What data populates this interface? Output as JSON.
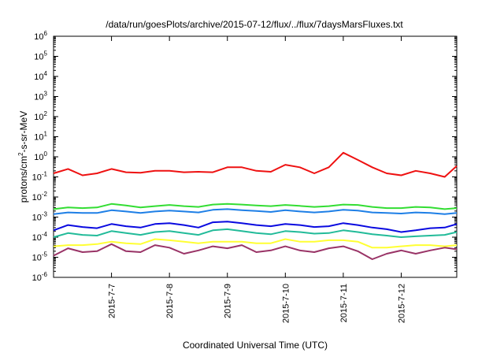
{
  "chart_data": {
    "type": "line",
    "title": "/data/run/goesPlots/archive/2015-07-12/flux/../flux/7daysMarsFluxes.txt",
    "xlabel": "Coordinated Universal Time (UTC)",
    "ylabel": "protons/cm2-s-sr-MeV",
    "ylabel_parts": {
      "base": "protons/cm",
      "sup": "2",
      "rest": "-s-sr-MeV"
    },
    "yscale": "log",
    "ylim_exponents": [
      -6,
      6
    ],
    "y_tick_labels": [
      {
        "base": "10",
        "exp": "-6"
      },
      {
        "base": "10",
        "exp": "-5"
      },
      {
        "base": "10",
        "exp": "-4"
      },
      {
        "base": "10",
        "exp": "-3"
      },
      {
        "base": "10",
        "exp": "-2"
      },
      {
        "base": "10",
        "exp": "-1"
      },
      {
        "base": "10",
        "exp": "0"
      },
      {
        "base": "10",
        "exp": "1"
      },
      {
        "base": "10",
        "exp": "2"
      },
      {
        "base": "10",
        "exp": "3"
      },
      {
        "base": "10",
        "exp": "4"
      },
      {
        "base": "10",
        "exp": "5"
      },
      {
        "base": "10",
        "exp": "6"
      }
    ],
    "x_tick_labels": [
      "2015-7-7",
      "2015-7-8",
      "2015-7-9",
      "2015-7-10",
      "2015-7-11",
      "2015-7-12"
    ],
    "xlim": [
      "2015-07-06",
      "2015-07-12 23:00"
    ],
    "x_tick_dates": [
      "2015-07-07",
      "2015-07-08",
      "2015-07-09",
      "2015-07-10",
      "2015-07-11",
      "2015-07-12"
    ],
    "x": [
      "2015-07-06",
      "2015-07-06 06:00",
      "2015-07-06 12:00",
      "2015-07-06 18:00",
      "2015-07-07",
      "2015-07-07 06:00",
      "2015-07-07 12:00",
      "2015-07-07 18:00",
      "2015-07-08",
      "2015-07-08 06:00",
      "2015-07-08 12:00",
      "2015-07-08 18:00",
      "2015-07-09",
      "2015-07-09 06:00",
      "2015-07-09 12:00",
      "2015-07-09 18:00",
      "2015-07-10",
      "2015-07-10 06:00",
      "2015-07-10 12:00",
      "2015-07-10 18:00",
      "2015-07-11",
      "2015-07-11 06:00",
      "2015-07-11 12:00",
      "2015-07-11 18:00",
      "2015-07-12",
      "2015-07-12 06:00",
      "2015-07-12 12:00",
      "2015-07-12 18:00",
      "2015-07-12 23:00"
    ],
    "grid": false,
    "legend": "none",
    "series": [
      {
        "color": "#ee1111",
        "values": [
          0.15,
          0.25,
          0.12,
          0.15,
          0.25,
          0.17,
          0.16,
          0.2,
          0.2,
          0.17,
          0.18,
          0.17,
          0.3,
          0.3,
          0.2,
          0.18,
          0.4,
          0.3,
          0.15,
          0.3,
          1.6,
          0.7,
          0.3,
          0.15,
          0.12,
          0.2,
          0.15,
          0.1,
          0.35
        ]
      },
      {
        "color": "#33dd33",
        "values": [
          0.0025,
          0.003,
          0.0028,
          0.003,
          0.0045,
          0.0038,
          0.003,
          0.0035,
          0.004,
          0.0035,
          0.0032,
          0.0042,
          0.0045,
          0.0042,
          0.0038,
          0.0035,
          0.004,
          0.0036,
          0.0032,
          0.0035,
          0.0042,
          0.004,
          0.0032,
          0.0028,
          0.0028,
          0.0032,
          0.003,
          0.0025,
          0.0028
        ]
      },
      {
        "color": "#1e7fe6",
        "values": [
          0.0014,
          0.0017,
          0.0016,
          0.0016,
          0.0022,
          0.0019,
          0.0016,
          0.0019,
          0.0021,
          0.0019,
          0.0017,
          0.0023,
          0.0025,
          0.0022,
          0.002,
          0.0018,
          0.0022,
          0.0019,
          0.0017,
          0.0019,
          0.0023,
          0.0021,
          0.0017,
          0.0016,
          0.0015,
          0.0017,
          0.0016,
          0.0014,
          0.0016
        ]
      },
      {
        "color": "#0a0ae0",
        "values": [
          0.00022,
          0.0004,
          0.00032,
          0.00028,
          0.00045,
          0.00035,
          0.0003,
          0.00045,
          0.0005,
          0.0004,
          0.0003,
          0.00055,
          0.0006,
          0.0005,
          0.0004,
          0.00035,
          0.00045,
          0.0004,
          0.00032,
          0.00035,
          0.0005,
          0.0004,
          0.0003,
          0.00025,
          0.00018,
          0.00022,
          0.00028,
          0.0003,
          0.00045
        ]
      },
      {
        "color": "#22bb99",
        "values": [
          0.0001,
          0.00016,
          0.00013,
          0.00012,
          0.0002,
          0.00016,
          0.00013,
          0.00018,
          0.0002,
          0.00016,
          0.00013,
          0.00022,
          0.00025,
          0.0002,
          0.00016,
          0.00014,
          0.0002,
          0.00018,
          0.00015,
          0.00016,
          0.00022,
          0.00018,
          0.00014,
          0.00012,
          0.0001,
          0.00011,
          0.00012,
          0.00013,
          0.00018
        ]
      },
      {
        "color": "#ffff33",
        "values": [
          3.5e-05,
          4e-05,
          4e-05,
          4.5e-05,
          6e-05,
          5e-05,
          4.5e-05,
          8e-05,
          7e-05,
          6e-05,
          5e-05,
          6e-05,
          6e-05,
          6e-05,
          5e-05,
          5e-05,
          8e-05,
          6e-05,
          6e-05,
          7e-05,
          7e-05,
          6e-05,
          3e-05,
          3e-05,
          3.5e-05,
          4e-05,
          4e-05,
          3.5e-05,
          4e-05
        ]
      },
      {
        "color": "#993366",
        "values": [
          1.2e-05,
          2.8e-05,
          1.8e-05,
          2e-05,
          4.5e-05,
          2e-05,
          1.8e-05,
          4e-05,
          3e-05,
          1.5e-05,
          2.2e-05,
          3.5e-05,
          2.8e-05,
          4e-05,
          1.8e-05,
          2.2e-05,
          3.5e-05,
          2.2e-05,
          1.8e-05,
          2.8e-05,
          3.5e-05,
          2e-05,
          8e-06,
          1.5e-05,
          2.2e-05,
          1.5e-05,
          2.2e-05,
          3e-05,
          2.5e-05
        ]
      }
    ]
  }
}
